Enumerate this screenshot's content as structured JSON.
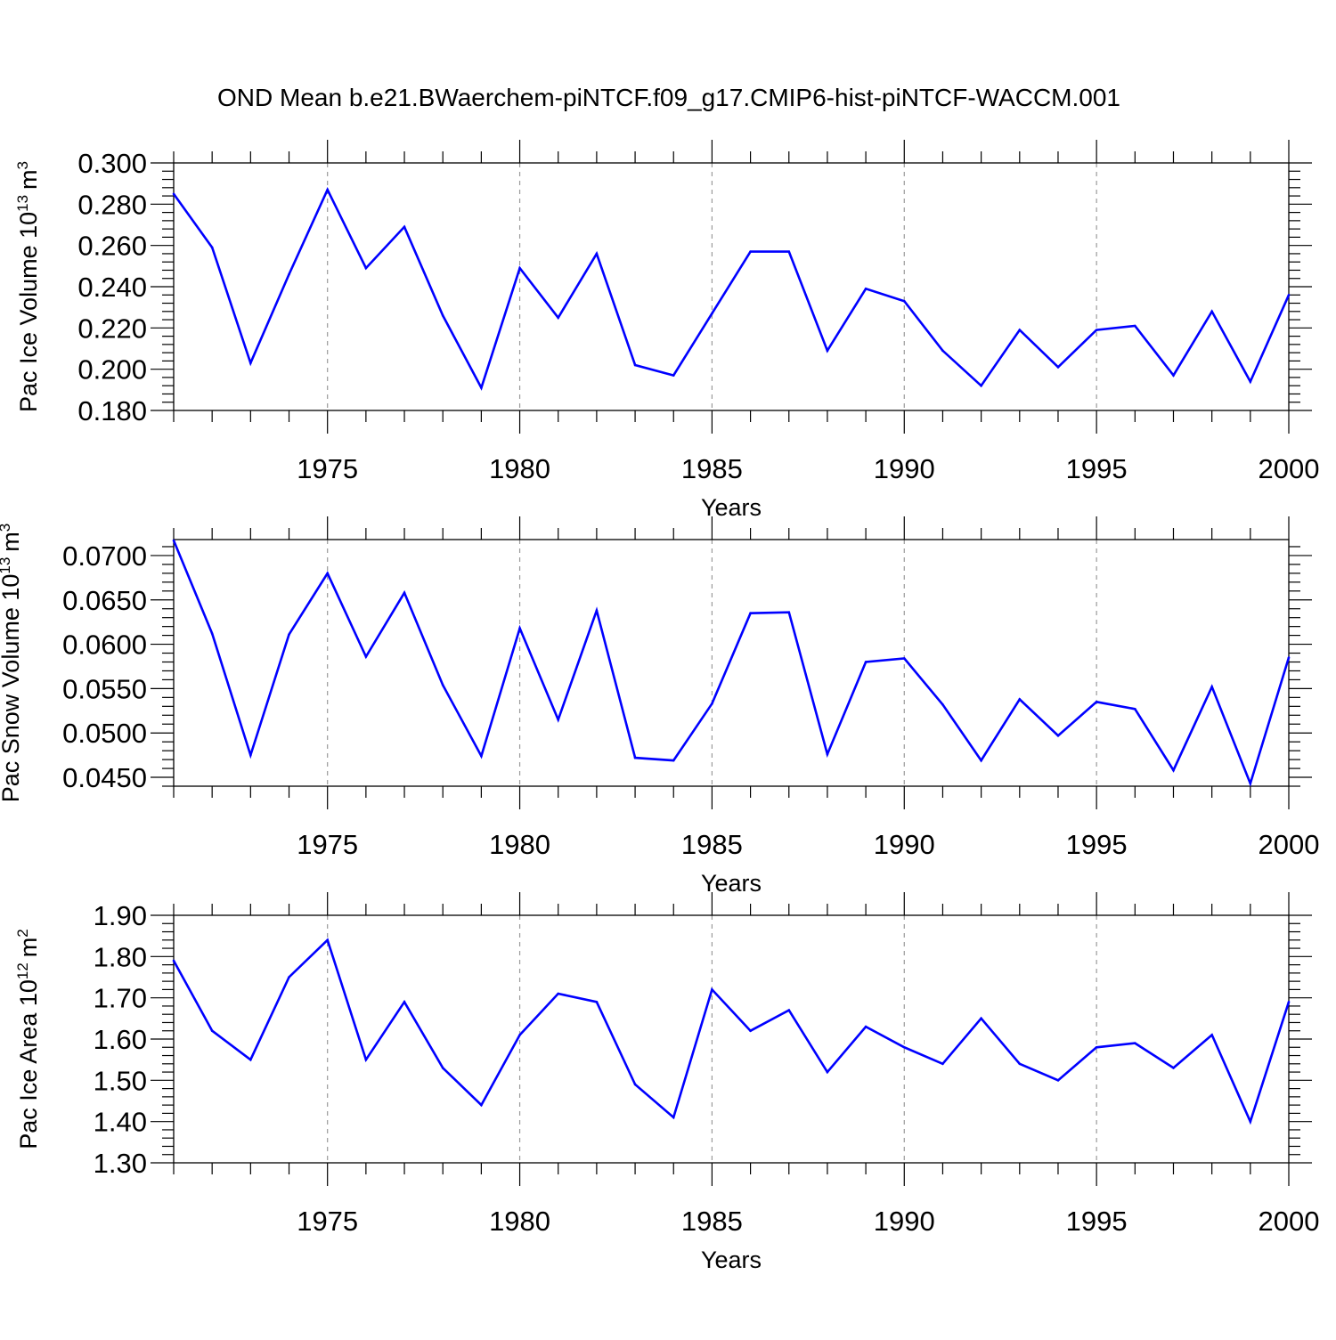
{
  "title": "OND Mean b.e21.BWaerchem-piNTCF.f09_g17.CMIP6-hist-piNTCF-WACCM.001",
  "colors": {
    "line": "#0000ff",
    "axis": "#000000",
    "grid": "#9a9a9a"
  },
  "chart_data": [
    {
      "type": "line",
      "id": "ice-volume",
      "ylabel": "Pac Ice Volume 10",
      "ylabel_sup": "13",
      "ylabel_unit": "m",
      "ylabel_unit_sup": "3",
      "xlabel": "Years",
      "xlim": [
        1971,
        2000
      ],
      "ylim": [
        0.18,
        0.3
      ],
      "yticks": [
        0.18,
        0.2,
        0.22,
        0.24,
        0.26,
        0.28,
        0.3
      ],
      "yticklabels": [
        "0.180",
        "0.200",
        "0.220",
        "0.240",
        "0.260",
        "0.280",
        "0.300"
      ],
      "xticks": [
        1975,
        1980,
        1985,
        1990,
        1995,
        2000
      ],
      "xticklabels": [
        "1975",
        "1980",
        "1985",
        "1990",
        "1995",
        "2000"
      ],
      "x": [
        1971,
        1972,
        1973,
        1974,
        1975,
        1976,
        1977,
        1978,
        1979,
        1980,
        1981,
        1982,
        1983,
        1984,
        1985,
        1986,
        1987,
        1988,
        1989,
        1990,
        1991,
        1992,
        1993,
        1994,
        1995,
        1996,
        1997,
        1998,
        1999,
        2000
      ],
      "y": [
        0.285,
        0.259,
        0.203,
        0.246,
        0.287,
        0.249,
        0.269,
        0.226,
        0.191,
        0.249,
        0.225,
        0.256,
        0.202,
        0.197,
        0.227,
        0.257,
        0.257,
        0.209,
        0.239,
        0.233,
        0.209,
        0.192,
        0.219,
        0.201,
        0.219,
        0.221,
        0.197,
        0.228,
        0.194,
        0.236
      ]
    },
    {
      "type": "line",
      "id": "snow-volume",
      "ylabel": "Pac Snow Volume 10",
      "ylabel_sup": "13",
      "ylabel_unit": "m",
      "ylabel_unit_sup": "3",
      "xlabel": "Years",
      "xlim": [
        1971,
        2000
      ],
      "ylim": [
        0.044,
        0.0718
      ],
      "yticks": [
        0.045,
        0.05,
        0.055,
        0.06,
        0.065,
        0.07
      ],
      "yticklabels": [
        "0.0450",
        "0.0500",
        "0.0550",
        "0.0600",
        "0.0650",
        "0.0700"
      ],
      "xticks": [
        1975,
        1980,
        1985,
        1990,
        1995,
        2000
      ],
      "xticklabels": [
        "1975",
        "1980",
        "1985",
        "1990",
        "1995",
        "2000"
      ],
      "x": [
        1971,
        1972,
        1973,
        1974,
        1975,
        1976,
        1977,
        1978,
        1979,
        1980,
        1981,
        1982,
        1983,
        1984,
        1985,
        1986,
        1987,
        1988,
        1989,
        1990,
        1991,
        1992,
        1993,
        1994,
        1995,
        1996,
        1997,
        1998,
        1999,
        2000
      ],
      "y": [
        0.0717,
        0.0612,
        0.0475,
        0.0611,
        0.068,
        0.0586,
        0.0658,
        0.0554,
        0.0474,
        0.0618,
        0.0515,
        0.0638,
        0.0472,
        0.0469,
        0.0533,
        0.0635,
        0.0636,
        0.0476,
        0.058,
        0.0584,
        0.0532,
        0.0469,
        0.0538,
        0.0497,
        0.0535,
        0.0527,
        0.0458,
        0.0552,
        0.0443,
        0.0585
      ]
    },
    {
      "type": "line",
      "id": "ice-area",
      "ylabel": "Pac Ice Area 10",
      "ylabel_sup": "12",
      "ylabel_unit": "m",
      "ylabel_unit_sup": "2",
      "xlabel": "Years",
      "xlim": [
        1971,
        2000
      ],
      "ylim": [
        1.3,
        1.9
      ],
      "yticks": [
        1.3,
        1.4,
        1.5,
        1.6,
        1.7,
        1.8,
        1.9
      ],
      "yticklabels": [
        "1.30",
        "1.40",
        "1.50",
        "1.60",
        "1.70",
        "1.80",
        "1.90"
      ],
      "xticks": [
        1975,
        1980,
        1985,
        1990,
        1995,
        2000
      ],
      "xticklabels": [
        "1975",
        "1980",
        "1985",
        "1990",
        "1995",
        "2000"
      ],
      "x": [
        1971,
        1972,
        1973,
        1974,
        1975,
        1976,
        1977,
        1978,
        1979,
        1980,
        1981,
        1982,
        1983,
        1984,
        1985,
        1986,
        1987,
        1988,
        1989,
        1990,
        1991,
        1992,
        1993,
        1994,
        1995,
        1996,
        1997,
        1998,
        1999,
        2000
      ],
      "y": [
        1.79,
        1.62,
        1.55,
        1.75,
        1.84,
        1.55,
        1.69,
        1.53,
        1.44,
        1.61,
        1.71,
        1.69,
        1.49,
        1.41,
        1.72,
        1.62,
        1.67,
        1.52,
        1.63,
        1.58,
        1.54,
        1.65,
        1.54,
        1.5,
        1.58,
        1.59,
        1.53,
        1.61,
        1.4,
        1.69
      ]
    }
  ]
}
